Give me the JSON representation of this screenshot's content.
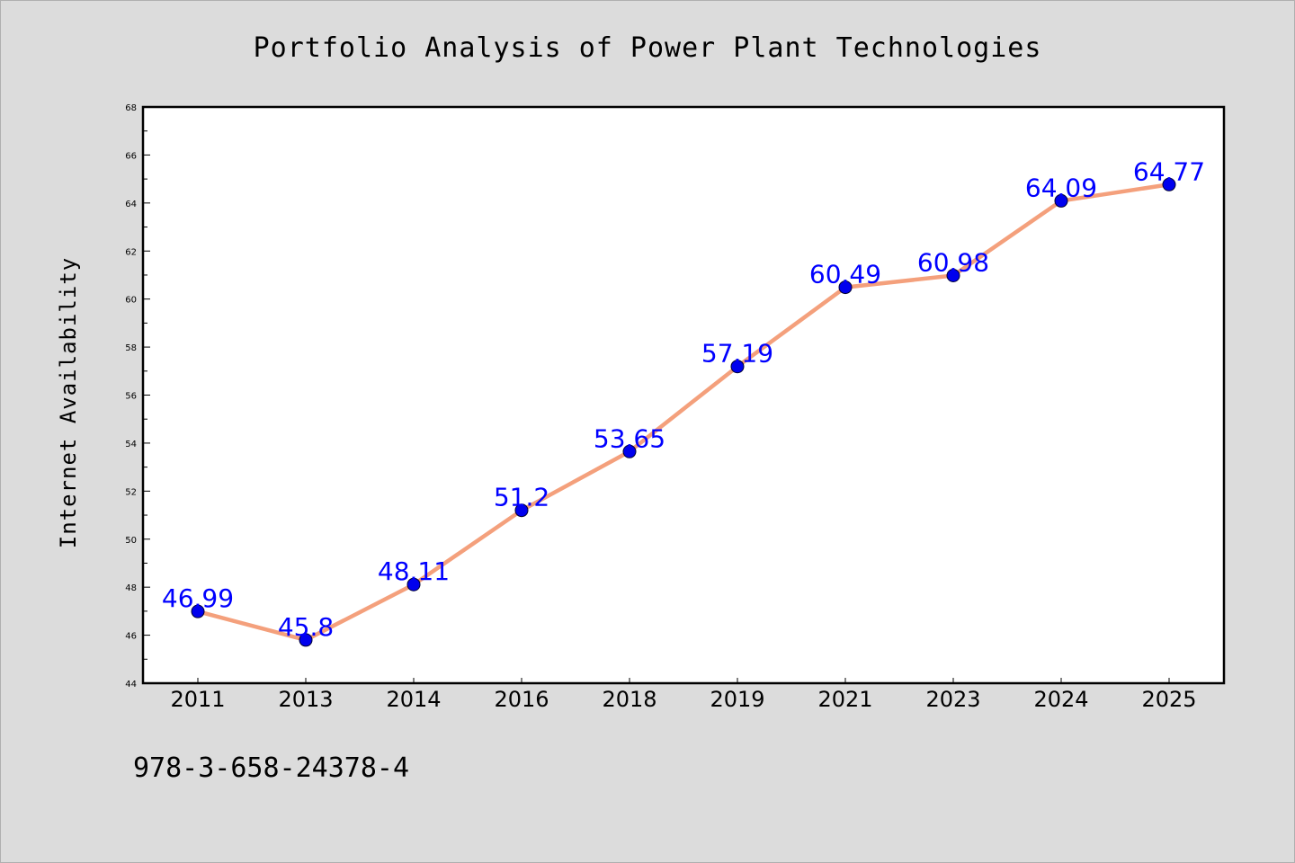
{
  "chart_data": {
    "type": "line",
    "title": "Portfolio Analysis of Power Plant Technologies",
    "xlabel": "",
    "ylabel": "Internet Availability",
    "categories": [
      "2011",
      "2013",
      "2014",
      "2016",
      "2018",
      "2019",
      "2021",
      "2023",
      "2024",
      "2025"
    ],
    "series": [
      {
        "values": [
          46.99,
          45.8,
          48.11,
          51.2,
          53.65,
          57.19,
          60.49,
          60.98,
          64.09,
          64.77
        ],
        "data_labels": [
          "46.99",
          "45.8",
          "48.11",
          "51.2",
          "53.65",
          "57.19",
          "60.49",
          "60.98",
          "64.09",
          "64.77"
        ]
      }
    ],
    "ylim": [
      44,
      68
    ],
    "y_ticks": [
      "44",
      "46",
      "48",
      "50",
      "52",
      "54",
      "56",
      "58",
      "60",
      "62",
      "64",
      "66",
      "68"
    ],
    "grid": false,
    "legend": "none",
    "colors": {
      "line": "#f4a07c",
      "marker": "#0000ee",
      "label": "#0000ff",
      "background": "#dcdcdc",
      "plot_background": "#ffffff"
    }
  },
  "footer": {
    "code": "978-3-658-24378-4"
  }
}
